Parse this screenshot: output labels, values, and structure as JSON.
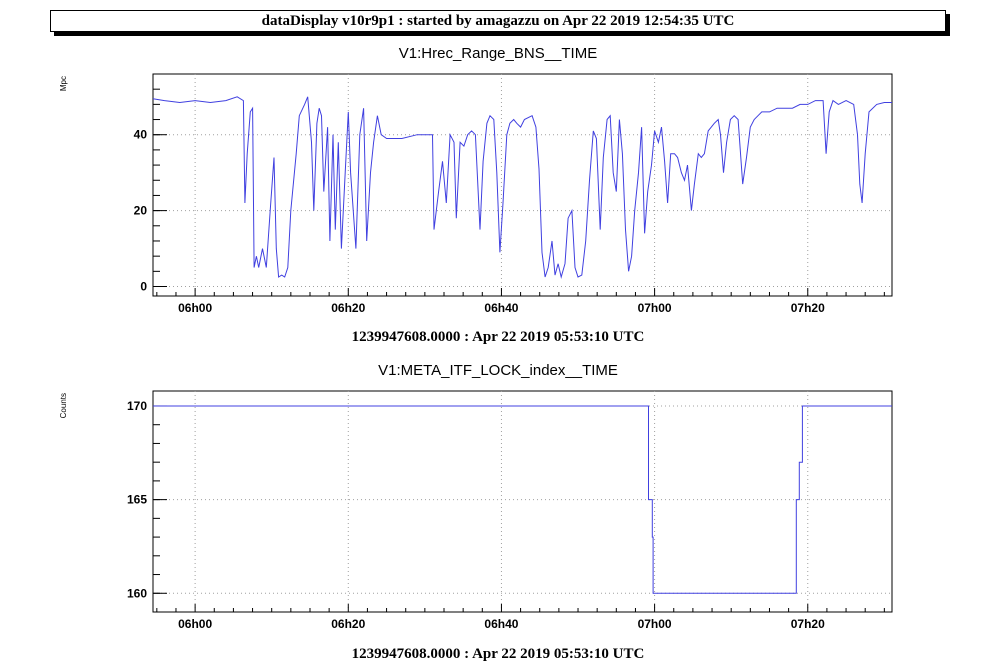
{
  "header": {
    "title": "dataDisplay v10r9p1 : started by amagazzu on Apr 22 2019 12:54:35 UTC"
  },
  "colors": {
    "series": "#4040e0",
    "grid": "#a0a0a0",
    "axis": "#000000"
  },
  "chart_data": [
    {
      "type": "line",
      "title": "V1:Hrec_Range_BNS__TIME",
      "ylabel": "Mpc",
      "xlabel": "",
      "footer": "1239947608.0000 : Apr 22 2019 05:53:10 UTC",
      "xlim_minutes": [
        -5.5,
        91
      ],
      "ylim": [
        -2.5,
        56
      ],
      "grid": true,
      "x_ticks": [
        {
          "min": 0,
          "label": "06h00"
        },
        {
          "min": 20,
          "label": "06h20"
        },
        {
          "min": 40,
          "label": "06h40"
        },
        {
          "min": 60,
          "label": "07h00"
        },
        {
          "min": 80,
          "label": "07h20"
        }
      ],
      "y_ticks": [
        {
          "v": 0,
          "label": "0"
        },
        {
          "v": 20,
          "label": "20"
        },
        {
          "v": 40,
          "label": "40"
        }
      ],
      "series": [
        {
          "points": [
            [
              -5.5,
              49.5
            ],
            [
              -4,
              49
            ],
            [
              -2,
              48.5
            ],
            [
              0,
              49
            ],
            [
              2,
              48.5
            ],
            [
              4,
              49
            ],
            [
              5.5,
              50
            ],
            [
              6.3,
              49
            ],
            [
              6.5,
              22
            ],
            [
              6.8,
              35
            ],
            [
              7.2,
              46
            ],
            [
              7.5,
              47
            ],
            [
              7.7,
              5
            ],
            [
              8,
              8
            ],
            [
              8.3,
              5
            ],
            [
              8.8,
              10
            ],
            [
              9.3,
              5
            ],
            [
              9.8,
              20
            ],
            [
              10.3,
              34
            ],
            [
              10.6,
              10
            ],
            [
              10.9,
              2.5
            ],
            [
              11.3,
              3
            ],
            [
              11.7,
              2.5
            ],
            [
              12.1,
              5
            ],
            [
              12.5,
              20
            ],
            [
              13.2,
              35
            ],
            [
              13.6,
              45
            ],
            [
              14.3,
              48
            ],
            [
              14.7,
              50
            ],
            [
              15.2,
              38
            ],
            [
              15.5,
              20
            ],
            [
              15.9,
              43
            ],
            [
              16.2,
              47
            ],
            [
              16.5,
              45
            ],
            [
              16.8,
              25
            ],
            [
              17.3,
              42
            ],
            [
              17.6,
              12
            ],
            [
              18,
              40
            ],
            [
              18.3,
              15
            ],
            [
              18.7,
              38
            ],
            [
              19.1,
              10
            ],
            [
              19.6,
              30
            ],
            [
              20,
              46
            ],
            [
              20.3,
              30
            ],
            [
              21,
              10
            ],
            [
              21.5,
              40
            ],
            [
              22,
              47
            ],
            [
              22.4,
              12
            ],
            [
              22.9,
              30
            ],
            [
              23.3,
              38
            ],
            [
              23.8,
              45
            ],
            [
              24.3,
              40
            ],
            [
              25,
              39
            ],
            [
              27,
              39
            ],
            [
              29,
              40
            ],
            [
              30,
              40
            ],
            [
              31,
              40
            ],
            [
              31.2,
              15
            ],
            [
              31.8,
              25
            ],
            [
              32.3,
              33
            ],
            [
              32.8,
              22
            ],
            [
              33.3,
              40
            ],
            [
              33.8,
              38
            ],
            [
              34.1,
              18
            ],
            [
              34.6,
              38
            ],
            [
              35.1,
              37
            ],
            [
              35.6,
              40
            ],
            [
              36.1,
              41
            ],
            [
              36.6,
              40
            ],
            [
              37.2,
              15
            ],
            [
              37.6,
              33
            ],
            [
              38.1,
              43
            ],
            [
              38.5,
              45
            ],
            [
              39,
              44
            ],
            [
              39.4,
              30
            ],
            [
              39.8,
              9
            ],
            [
              40.2,
              22
            ],
            [
              40.7,
              40
            ],
            [
              41.1,
              43
            ],
            [
              41.6,
              44
            ],
            [
              42,
              43
            ],
            [
              42.5,
              42
            ],
            [
              43,
              44
            ],
            [
              44,
              45
            ],
            [
              44.5,
              42
            ],
            [
              44.9,
              31
            ],
            [
              45.3,
              9
            ],
            [
              45.7,
              2.5
            ],
            [
              46.1,
              5
            ],
            [
              46.6,
              12
            ],
            [
              47,
              3
            ],
            [
              47.4,
              6
            ],
            [
              47.8,
              2.5
            ],
            [
              48.3,
              6
            ],
            [
              48.7,
              18
            ],
            [
              49.2,
              20
            ],
            [
              49.6,
              5
            ],
            [
              50,
              2.5
            ],
            [
              50.5,
              3
            ],
            [
              51,
              12
            ],
            [
              51.5,
              28
            ],
            [
              52,
              41
            ],
            [
              52.4,
              39
            ],
            [
              52.9,
              15
            ],
            [
              53.3,
              34
            ],
            [
              53.8,
              44
            ],
            [
              54.2,
              45
            ],
            [
              54.6,
              30
            ],
            [
              55,
              25
            ],
            [
              55.4,
              44
            ],
            [
              55.8,
              35
            ],
            [
              56.2,
              15
            ],
            [
              56.6,
              4
            ],
            [
              57,
              8
            ],
            [
              57.4,
              20
            ],
            [
              57.9,
              30
            ],
            [
              58.3,
              42
            ],
            [
              58.7,
              14
            ],
            [
              59.1,
              25
            ],
            [
              59.6,
              32
            ],
            [
              60,
              41
            ],
            [
              60.5,
              38
            ],
            [
              60.9,
              42
            ],
            [
              61.3,
              33
            ],
            [
              61.7,
              22
            ],
            [
              62.1,
              35
            ],
            [
              62.6,
              35
            ],
            [
              63,
              34
            ],
            [
              63.5,
              30
            ],
            [
              63.9,
              28
            ],
            [
              64.3,
              32
            ],
            [
              64.8,
              20
            ],
            [
              65.2,
              27
            ],
            [
              65.7,
              35
            ],
            [
              66.1,
              34
            ],
            [
              66.5,
              35
            ],
            [
              67,
              41
            ],
            [
              67.4,
              42
            ],
            [
              67.8,
              43
            ],
            [
              68.3,
              44
            ],
            [
              68.6,
              40
            ],
            [
              69,
              30
            ],
            [
              69.4,
              38
            ],
            [
              69.9,
              44
            ],
            [
              70.4,
              45
            ],
            [
              70.9,
              44
            ],
            [
              71.5,
              27
            ],
            [
              72,
              34
            ],
            [
              72.5,
              42
            ],
            [
              73,
              44
            ],
            [
              73.5,
              45
            ],
            [
              74,
              46
            ],
            [
              75,
              46
            ],
            [
              76,
              47
            ],
            [
              77,
              47
            ],
            [
              78,
              47
            ],
            [
              79,
              48
            ],
            [
              80,
              48
            ],
            [
              81,
              49
            ],
            [
              82,
              49
            ],
            [
              82.4,
              35
            ],
            [
              82.8,
              46
            ],
            [
              83.3,
              49
            ],
            [
              84,
              48
            ],
            [
              85,
              49
            ],
            [
              86,
              48
            ],
            [
              86.5,
              40
            ],
            [
              86.8,
              27
            ],
            [
              87.1,
              22
            ],
            [
              87.5,
              35
            ],
            [
              88,
              46
            ],
            [
              89,
              48
            ],
            [
              90,
              48.5
            ],
            [
              91,
              48.5
            ]
          ]
        }
      ]
    },
    {
      "type": "line",
      "title": "V1:META_ITF_LOCK_index__TIME",
      "ylabel": "Counts",
      "xlabel": "",
      "footer": "1239947608.0000 : Apr 22 2019 05:53:10 UTC",
      "xlim_minutes": [
        -5.5,
        91
      ],
      "ylim": [
        159,
        170.8
      ],
      "grid": true,
      "x_ticks": [
        {
          "min": 0,
          "label": "06h00"
        },
        {
          "min": 20,
          "label": "06h20"
        },
        {
          "min": 40,
          "label": "06h40"
        },
        {
          "min": 60,
          "label": "07h00"
        },
        {
          "min": 80,
          "label": "07h20"
        }
      ],
      "y_ticks": [
        {
          "v": 160,
          "label": "160"
        },
        {
          "v": 165,
          "label": "165"
        },
        {
          "v": 170,
          "label": "170"
        }
      ],
      "series": [
        {
          "points": [
            [
              -5.5,
              170
            ],
            [
              58.7,
              170
            ],
            [
              59.2,
              165
            ],
            [
              59.5,
              165
            ],
            [
              59.7,
              163
            ],
            [
              59.8,
              160
            ],
            [
              78.4,
              160
            ],
            [
              78.5,
              165
            ],
            [
              78.9,
              167
            ],
            [
              79.1,
              167
            ],
            [
              79.3,
              170
            ],
            [
              91,
              170
            ]
          ]
        }
      ]
    }
  ]
}
